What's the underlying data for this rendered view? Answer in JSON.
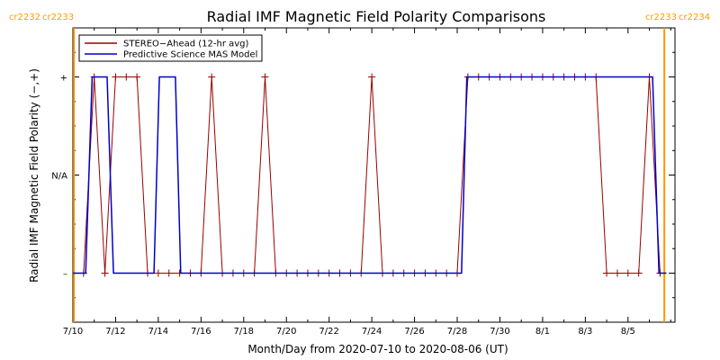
{
  "chart_data": {
    "type": "line",
    "title": "Radial IMF Magnetic Field Polarity Comparisons",
    "xlabel": "Month/Day from 2020-07-10 to 2020-08-06 (UT)",
    "ylabel": "Radial IMF Magnetic Field Polarity (−,+)",
    "xlim": [
      0,
      28.2
    ],
    "ylim": [
      -1.5,
      1.5
    ],
    "x_tick_values": [
      0,
      2,
      4,
      6,
      8,
      10,
      12,
      14,
      16,
      18,
      20,
      22,
      24,
      26
    ],
    "x_tick_labels": [
      "7/10",
      "7/12",
      "7/14",
      "7/16",
      "7/18",
      "7/20",
      "7/22",
      "7/24",
      "7/26",
      "7/28",
      "7/30",
      "8/1",
      "8/3",
      "8/5"
    ],
    "y_tick_values": [
      1,
      0,
      -1
    ],
    "y_tick_labels": [
      "+",
      "N/A",
      "–"
    ],
    "carrington_rotations": [
      {
        "x": 0.05,
        "left_label": "cr2232",
        "right_label": "cr2233"
      },
      {
        "x": 27.7,
        "left_label": "cr2233",
        "right_label": "cr2234"
      }
    ],
    "legend_position": "top-left",
    "series": [
      {
        "name": "STEREO−Ahead (12-hr avg)",
        "color": "#990000",
        "markers": true,
        "points": [
          [
            0.5,
            -1
          ],
          [
            1,
            1
          ],
          [
            1.5,
            -1
          ],
          [
            2,
            1
          ],
          [
            2.5,
            1
          ],
          [
            3,
            1
          ],
          [
            3.5,
            -1
          ],
          [
            4,
            -1
          ],
          [
            4.5,
            -1
          ],
          [
            5,
            -1
          ],
          [
            5.5,
            -1
          ],
          [
            6,
            -1
          ],
          [
            6.5,
            1
          ],
          [
            7,
            -1
          ],
          [
            7.5,
            -1
          ],
          [
            8,
            -1
          ],
          [
            8.5,
            -1
          ],
          [
            9,
            1
          ],
          [
            9.5,
            -1
          ],
          [
            10,
            -1
          ],
          [
            10.5,
            -1
          ],
          [
            11,
            -1
          ],
          [
            11.5,
            -1
          ],
          [
            12,
            -1
          ],
          [
            12.5,
            -1
          ],
          [
            13,
            -1
          ],
          [
            13.5,
            -1
          ],
          [
            14,
            1
          ],
          [
            14.5,
            -1
          ],
          [
            15,
            -1
          ],
          [
            15.5,
            -1
          ],
          [
            16,
            -1
          ],
          [
            16.5,
            -1
          ],
          [
            17,
            -1
          ],
          [
            17.5,
            -1
          ],
          [
            18,
            -1
          ],
          [
            18.5,
            1
          ],
          [
            19,
            1
          ],
          [
            19.5,
            1
          ],
          [
            20,
            1
          ],
          [
            20.5,
            1
          ],
          [
            21,
            1
          ],
          [
            21.5,
            1
          ],
          [
            22,
            1
          ],
          [
            22.5,
            1
          ],
          [
            23,
            1
          ],
          [
            23.5,
            1
          ],
          [
            24,
            1
          ],
          [
            24.5,
            1
          ],
          [
            25,
            -1
          ],
          [
            25.5,
            -1
          ],
          [
            26,
            -1
          ],
          [
            26.5,
            -1
          ],
          [
            27,
            1
          ],
          [
            27.5,
            -1
          ]
        ]
      },
      {
        "name": "Predictive Science MAS Model",
        "color": "#0000cc",
        "markers": false,
        "points": [
          [
            0,
            -1
          ],
          [
            0.6,
            -1
          ],
          [
            0.9,
            1
          ],
          [
            1.6,
            1
          ],
          [
            1.9,
            -1
          ],
          [
            3.8,
            -1
          ],
          [
            4.05,
            1
          ],
          [
            4.8,
            1
          ],
          [
            5.05,
            -1
          ],
          [
            18.2,
            -1
          ],
          [
            18.45,
            1
          ],
          [
            27.15,
            1
          ],
          [
            27.45,
            -1
          ],
          [
            27.8,
            -1
          ]
        ]
      }
    ]
  }
}
